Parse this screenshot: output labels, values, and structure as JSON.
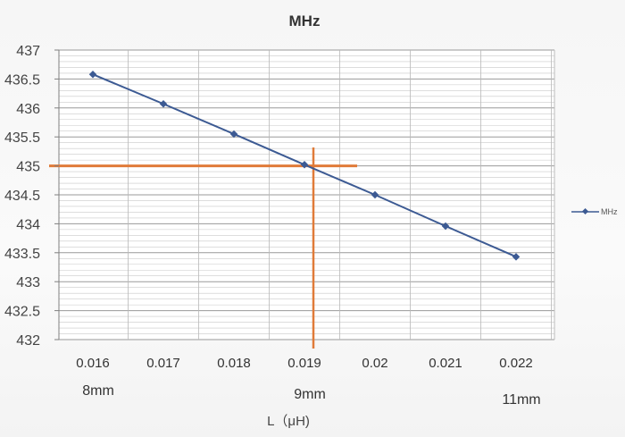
{
  "chart_data": {
    "type": "line",
    "title": "MHz",
    "xlabel": "L（μH)",
    "ylabel": "",
    "x": [
      "0.016",
      "0.017",
      "0.018",
      "0.019",
      "0.02",
      "0.021",
      "0.022"
    ],
    "x_sub_labels": [
      {
        "x": "0.016",
        "label": "8mm"
      },
      {
        "x": "0.019",
        "label": "9mm"
      },
      {
        "x": "0.022",
        "label": "11mm"
      }
    ],
    "series": [
      {
        "name": "MHz",
        "values": [
          436.58,
          436.07,
          435.55,
          435.02,
          434.5,
          433.96,
          433.43
        ],
        "color": "#3c5a93"
      }
    ],
    "ylim": [
      432,
      437
    ],
    "yticks": [
      "437",
      "436.5",
      "436",
      "435.5",
      "435",
      "434.5",
      "434",
      "433.5",
      "433",
      "432.5",
      "432"
    ],
    "reference_lines": [
      {
        "orientation": "horizontal",
        "y": 435,
        "color": "#e07b39"
      },
      {
        "orientation": "vertical",
        "x": "0.019",
        "color": "#e07b39"
      }
    ],
    "grid": true,
    "legend": "right"
  }
}
